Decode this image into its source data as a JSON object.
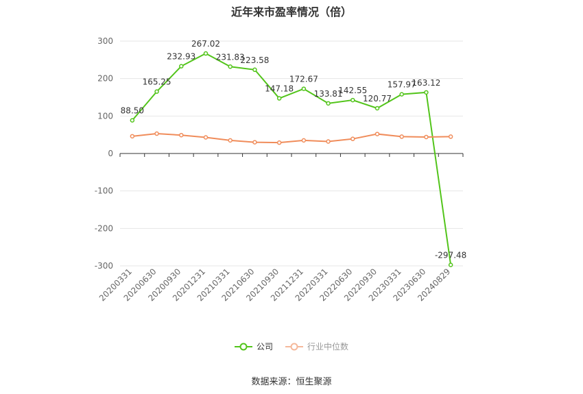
{
  "chart_data": {
    "type": "line",
    "title": "近年来市盈率情况（倍）",
    "categories": [
      "20200331",
      "20200630",
      "20200930",
      "20201231",
      "20210331",
      "20210630",
      "20210930",
      "20211231",
      "20220331",
      "20220630",
      "20220930",
      "20230331",
      "20230630",
      "20240829"
    ],
    "series": [
      {
        "name": "公司",
        "color": "#52c41a",
        "values": [
          88.5,
          165.25,
          232.93,
          267.02,
          231.83,
          223.58,
          147.18,
          172.67,
          133.81,
          142.55,
          120.77,
          157.97,
          163.12,
          -297.48
        ]
      },
      {
        "name": "行业中位数",
        "color": "#f08c5a",
        "values": [
          46,
          53,
          49,
          43,
          35,
          30,
          29,
          35,
          32,
          39,
          52,
          45,
          44,
          45
        ]
      }
    ],
    "yticks": [
      300,
      200,
      100,
      0,
      -100,
      -200,
      -300
    ],
    "ylim": [
      -300,
      300
    ],
    "grid": true,
    "legend": "bottom-center",
    "source": "数据来源：恒生聚源"
  }
}
